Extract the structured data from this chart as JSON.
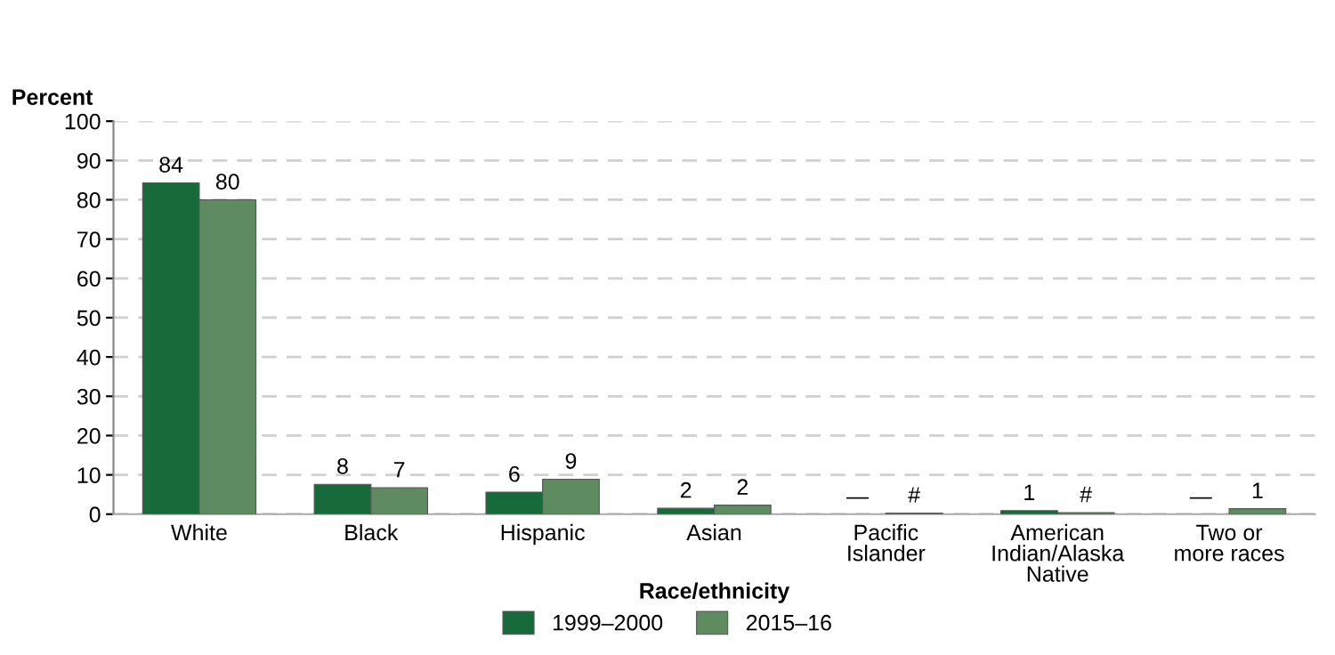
{
  "chart_data": {
    "type": "bar",
    "ylabel": "Percent",
    "xlabel": "Race/ethnicity",
    "categories": [
      "White",
      "Black",
      "Hispanic",
      "Asian",
      "Pacific\nIslander",
      "American\nIndian/Alaska\nNative",
      "Two or\nmore races"
    ],
    "series": [
      {
        "name": "1999–2000",
        "color": "#176b3b",
        "values": [
          84.3,
          7.6,
          5.6,
          1.5,
          null,
          0.9,
          null
        ],
        "value_labels": [
          "84",
          "8",
          "6",
          "2",
          "—",
          "1",
          "—"
        ]
      },
      {
        "name": "2015–16",
        "color": "#5e8b60",
        "values": [
          80.0,
          6.7,
          8.9,
          2.3,
          0.3,
          0.4,
          1.4
        ],
        "value_labels": [
          "80",
          "7",
          "9",
          "2",
          "#",
          "#",
          "1"
        ]
      }
    ],
    "ylim": [
      0,
      100
    ],
    "yticks": [
      0,
      10,
      20,
      30,
      40,
      50,
      60,
      70,
      80,
      90,
      100
    ],
    "grid": "y",
    "legend": "bottom"
  }
}
